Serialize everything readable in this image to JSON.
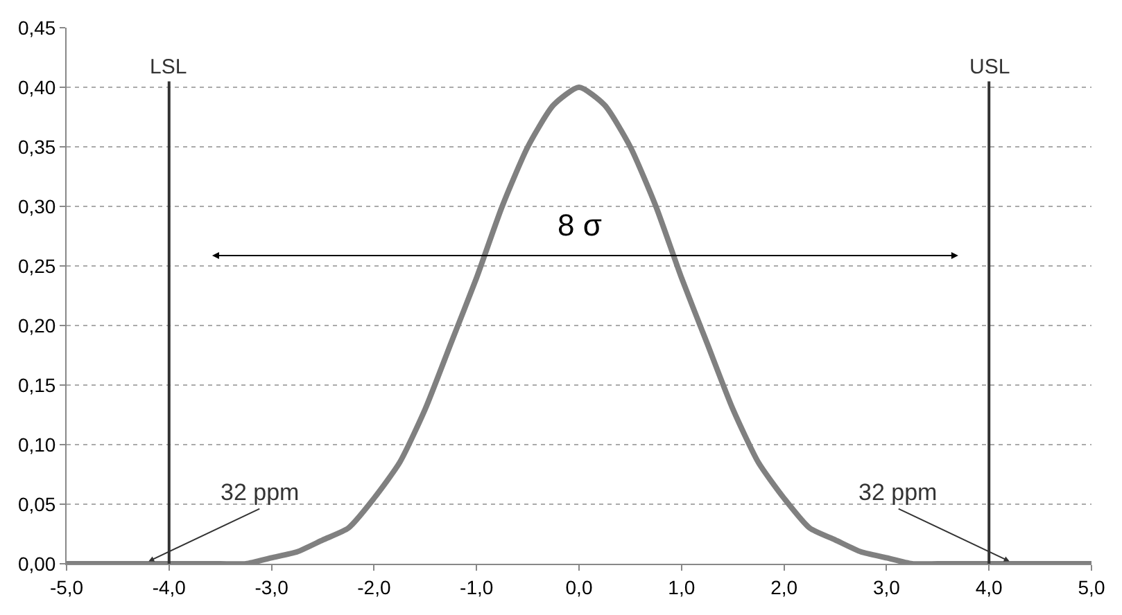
{
  "chart_data": {
    "type": "line",
    "x": [
      -5,
      -4.75,
      -4.5,
      -4.25,
      -4,
      -3.75,
      -3.5,
      -3.25,
      -3,
      -2.75,
      -2.5,
      -2.25,
      -2,
      -1.75,
      -1.5,
      -1.25,
      -1,
      -0.75,
      -0.5,
      -0.25,
      0,
      0.25,
      0.5,
      0.75,
      1,
      1.25,
      1.5,
      1.75,
      2,
      2.25,
      2.5,
      2.75,
      3,
      3.25,
      3.5,
      3.75,
      4,
      4.25,
      4.5,
      4.75,
      5
    ],
    "series": [
      {
        "color": "#808080",
        "values": [
          0,
          0,
          0,
          0,
          0,
          0,
          0,
          0,
          0.005,
          0.01,
          0.02,
          0.03,
          0.055,
          0.085,
          0.13,
          0.185,
          0.24,
          0.3,
          0.35,
          0.385,
          0.4,
          0.385,
          0.35,
          0.3,
          0.24,
          0.185,
          0.13,
          0.085,
          0.055,
          0.03,
          0.02,
          0.01,
          0.005,
          0,
          0,
          0,
          0,
          0,
          0,
          0,
          0
        ]
      }
    ],
    "xlim": [
      -5,
      5
    ],
    "xticks": [
      {
        "value": -5,
        "label": "-5,0"
      },
      {
        "value": -4,
        "label": "-4,0"
      },
      {
        "value": -3,
        "label": "-3,0"
      },
      {
        "value": -2,
        "label": "-2,0"
      },
      {
        "value": -1,
        "label": "-1,0"
      },
      {
        "value": 0,
        "label": "0,0"
      },
      {
        "value": 1,
        "label": "1,0"
      },
      {
        "value": 2,
        "label": "2,0"
      },
      {
        "value": 3,
        "label": "3,0"
      },
      {
        "value": 4,
        "label": "4,0"
      },
      {
        "value": 5,
        "label": "5,0"
      }
    ],
    "ylim": [
      0,
      0.45
    ],
    "yticks": [
      {
        "value": 0,
        "label": "0,00"
      },
      {
        "value": 0.05,
        "label": "0,05"
      },
      {
        "value": 0.1,
        "label": "0,10"
      },
      {
        "value": 0.15,
        "label": "0,15"
      },
      {
        "value": 0.2,
        "label": "0,20"
      },
      {
        "value": 0.25,
        "label": "0,25"
      },
      {
        "value": 0.3,
        "label": "0,30"
      },
      {
        "value": 0.35,
        "label": "0,35"
      },
      {
        "value": 0.4,
        "label": "0,40"
      },
      {
        "value": 0.45,
        "label": "0,45"
      }
    ],
    "ref_lines": [
      {
        "axis": "x",
        "value": -4,
        "label": "LSL",
        "color": "#333333"
      },
      {
        "axis": "x",
        "value": 4,
        "label": "USL",
        "color": "#333333"
      }
    ],
    "annotations": [
      "8 σ",
      {
        "text": "32 ppm",
        "x": -4.2,
        "y": 0.002
      },
      {
        "text": "32 ppm",
        "x": 4.2,
        "y": 0.002
      }
    ],
    "grid": "y",
    "marker": "none",
    "line_style": "solid"
  }
}
